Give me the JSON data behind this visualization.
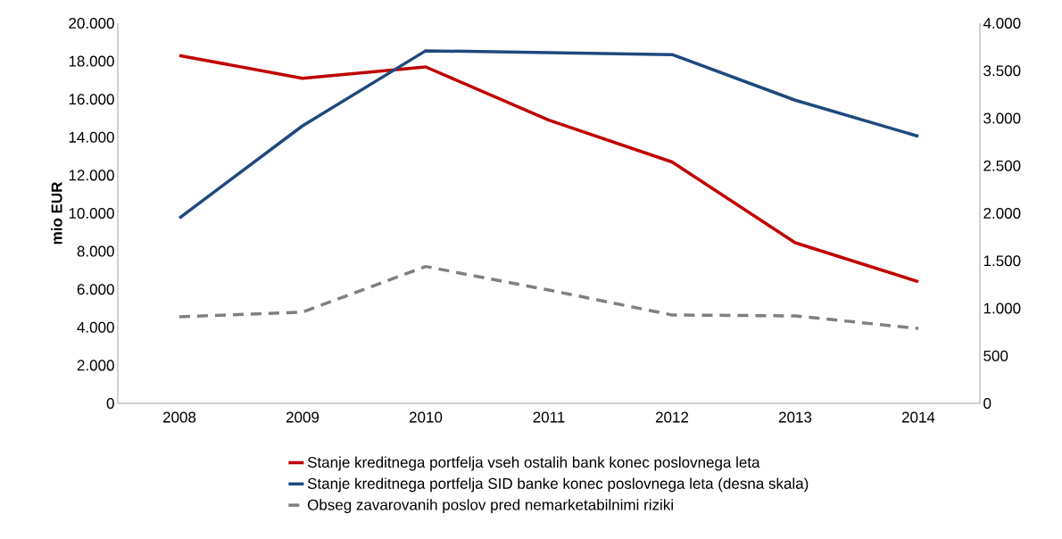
{
  "chart_data": {
    "type": "line",
    "ylabel": "mio EUR",
    "categories": [
      "2008",
      "2009",
      "2010",
      "2011",
      "2012",
      "2013",
      "2014"
    ],
    "series": [
      {
        "name": "Stanje kreditnega portfelja vseh ostalih bank konec poslovnega leta",
        "color": "#c00000",
        "line_style": "solid",
        "values": [
          18300,
          17100,
          17700,
          14900,
          12700,
          8450,
          6400
        ]
      },
      {
        "name": "Stanje kreditnega portfelja SID banke konec poslovnega leta (desna skala)",
        "color": "#1f497d",
        "line_style": "solid",
        "axis": "y2",
        "values": [
          1950,
          2920,
          3710,
          3690,
          3670,
          3190,
          2810
        ]
      },
      {
        "name": "Obseg zavarovanih poslov pred nemarketabilnimi riziki",
        "color": "#808080",
        "line_style": "dashed",
        "values": [
          4550,
          4800,
          7200,
          5960,
          4650,
          4600,
          3940
        ]
      }
    ],
    "ylim": [
      0,
      20000
    ],
    "yticks": [
      0,
      {
        "value": 2000,
        "label": "2.000"
      },
      {
        "value": 4000,
        "label": "4.000"
      },
      {
        "value": 6000,
        "label": "6.000"
      },
      {
        "value": 8000,
        "label": "8.000"
      },
      {
        "value": 10000,
        "label": "10.000"
      },
      {
        "value": 12000,
        "label": "12.000"
      },
      {
        "value": 14000,
        "label": "14.000"
      },
      {
        "value": 16000,
        "label": "16.000"
      },
      {
        "value": 18000,
        "label": "18.000"
      },
      {
        "value": 20000,
        "label": "20.000"
      }
    ],
    "y2lim": [
      0,
      4000
    ],
    "y2ticks": [
      0,
      500,
      {
        "value": 1000,
        "label": "1.000"
      },
      {
        "value": 1500,
        "label": "1.500"
      },
      {
        "value": 2000,
        "label": "2.000"
      },
      {
        "value": 2500,
        "label": "2.500"
      },
      {
        "value": 3000,
        "label": "3.000"
      },
      {
        "value": 3500,
        "label": "3.500"
      },
      {
        "value": 4000,
        "label": "4.000"
      }
    ],
    "grid": false,
    "legend": "bottom",
    "marker": "none"
  }
}
